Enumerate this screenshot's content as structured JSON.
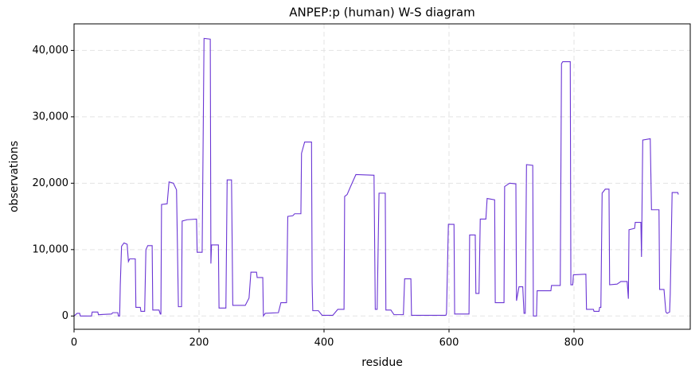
{
  "chart_data": {
    "type": "line",
    "title": "ANPEP:p (human) W-S diagram",
    "x_label": "residue",
    "y_label": "observations",
    "color": "#6a35d4",
    "grid": true,
    "xlim": [
      0,
      986
    ],
    "ylim": [
      -2000,
      44000
    ],
    "xticks": [
      0,
      200,
      400,
      600,
      800
    ],
    "yticks": [
      0,
      {
        "value": 10000,
        "label": "10,000"
      },
      {
        "value": 20000,
        "label": "20,000"
      },
      {
        "value": 30000,
        "label": "30,000"
      },
      {
        "value": 40000,
        "label": "40,000"
      }
    ],
    "x": [
      0,
      5,
      9,
      10,
      28,
      29,
      38,
      39,
      60,
      62,
      70,
      71,
      73,
      74,
      76,
      80,
      85,
      87,
      89,
      98,
      99,
      106,
      107,
      113,
      115,
      118,
      125,
      126,
      136,
      138,
      139,
      140,
      149,
      152,
      159,
      164,
      167,
      172,
      173,
      181,
      196,
      197,
      205,
      208,
      218,
      219,
      220,
      231,
      232,
      243,
      245,
      252,
      254,
      274,
      280,
      283,
      292,
      293,
      302,
      303,
      306,
      327,
      331,
      340,
      342,
      350,
      353,
      363,
      364,
      369,
      380,
      381,
      382,
      391,
      397,
      414,
      422,
      432,
      433,
      437,
      442,
      451,
      480,
      482,
      485,
      488,
      498,
      499,
      507,
      512,
      527,
      529,
      539,
      540,
      595,
      596,
      599,
      608,
      609,
      632,
      633,
      642,
      643,
      648,
      650,
      659,
      661,
      673,
      674,
      688,
      689,
      697,
      707,
      708,
      712,
      718,
      720,
      722,
      724,
      734,
      735,
      740,
      741,
      763,
      764,
      778,
      780,
      782,
      794,
      795,
      798,
      799,
      819,
      820,
      831,
      832,
      840,
      841,
      843,
      845,
      850,
      856,
      857,
      869,
      875,
      885,
      887,
      888,
      897,
      898,
      907,
      908,
      910,
      922,
      924,
      936,
      937,
      944,
      947,
      949,
      953,
      954,
      957,
      966,
      967
    ],
    "y": [
      0,
      400,
      400,
      0,
      0,
      600,
      600,
      200,
      300,
      500,
      500,
      0,
      0,
      4700,
      10500,
      11000,
      10800,
      8200,
      8600,
      8600,
      1300,
      1300,
      700,
      700,
      10000,
      10600,
      10600,
      900,
      900,
      300,
      300,
      16800,
      16900,
      20200,
      20000,
      19000,
      1400,
      1400,
      14300,
      14500,
      14600,
      9600,
      9600,
      41800,
      41700,
      7900,
      10700,
      10700,
      1200,
      1200,
      20500,
      20500,
      1600,
      1600,
      2700,
      6600,
      6600,
      5800,
      5800,
      0,
      400,
      500,
      2000,
      2000,
      15000,
      15100,
      15400,
      15400,
      24500,
      26200,
      26200,
      5000,
      800,
      800,
      100,
      100,
      1000,
      1000,
      18000,
      18300,
      19400,
      21300,
      21200,
      1000,
      1000,
      18500,
      18500,
      900,
      900,
      200,
      200,
      5600,
      5600,
      100,
      100,
      400,
      13800,
      13800,
      300,
      300,
      12200,
      12200,
      3400,
      3400,
      14600,
      14600,
      17700,
      17500,
      2000,
      2000,
      19500,
      20000,
      19900,
      2300,
      4400,
      4400,
      400,
      400,
      22800,
      22700,
      0,
      0,
      3800,
      3800,
      4600,
      4600,
      38000,
      38300,
      38300,
      4700,
      4700,
      6200,
      6300,
      1000,
      1000,
      700,
      700,
      1300,
      1300,
      18500,
      19100,
      19100,
      4700,
      4800,
      5200,
      5200,
      2600,
      13000,
      13200,
      14100,
      14100,
      8900,
      26500,
      26700,
      16000,
      16000,
      4000,
      4000,
      600,
      400,
      600,
      3300,
      18600,
      18600,
      18300
    ]
  }
}
